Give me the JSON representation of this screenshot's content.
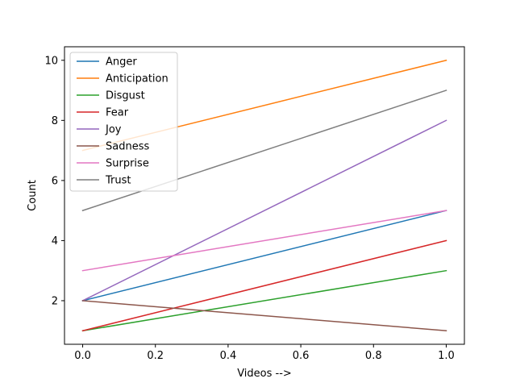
{
  "chart_data": {
    "type": "line",
    "title": "",
    "xlabel": "Videos -->",
    "ylabel": "Count",
    "x": [
      0.0,
      1.0
    ],
    "xlim": [
      -0.05,
      1.05
    ],
    "ylim": [
      0.55,
      10.45
    ],
    "xticks": [
      0.0,
      0.2,
      0.4,
      0.6,
      0.8,
      1.0
    ],
    "xtick_labels": [
      "0.0",
      "0.2",
      "0.4",
      "0.6",
      "0.8",
      "1.0"
    ],
    "yticks": [
      2,
      4,
      6,
      8,
      10
    ],
    "ytick_labels": [
      "2",
      "4",
      "6",
      "8",
      "10"
    ],
    "grid": false,
    "legend_position": "upper-left",
    "series": [
      {
        "name": "Anger",
        "values": [
          2,
          5
        ],
        "color": "#1f77b4"
      },
      {
        "name": "Anticipation",
        "values": [
          7,
          10
        ],
        "color": "#ff7f0e"
      },
      {
        "name": "Disgust",
        "values": [
          1,
          3
        ],
        "color": "#2ca02c"
      },
      {
        "name": "Fear",
        "values": [
          1,
          4
        ],
        "color": "#d62728"
      },
      {
        "name": "Joy",
        "values": [
          2,
          8
        ],
        "color": "#9467bd"
      },
      {
        "name": "Sadness",
        "values": [
          2,
          1
        ],
        "color": "#8c564b"
      },
      {
        "name": "Surprise",
        "values": [
          3,
          5
        ],
        "color": "#e377c2"
      },
      {
        "name": "Trust",
        "values": [
          5,
          9
        ],
        "color": "#7f7f7f"
      }
    ]
  }
}
